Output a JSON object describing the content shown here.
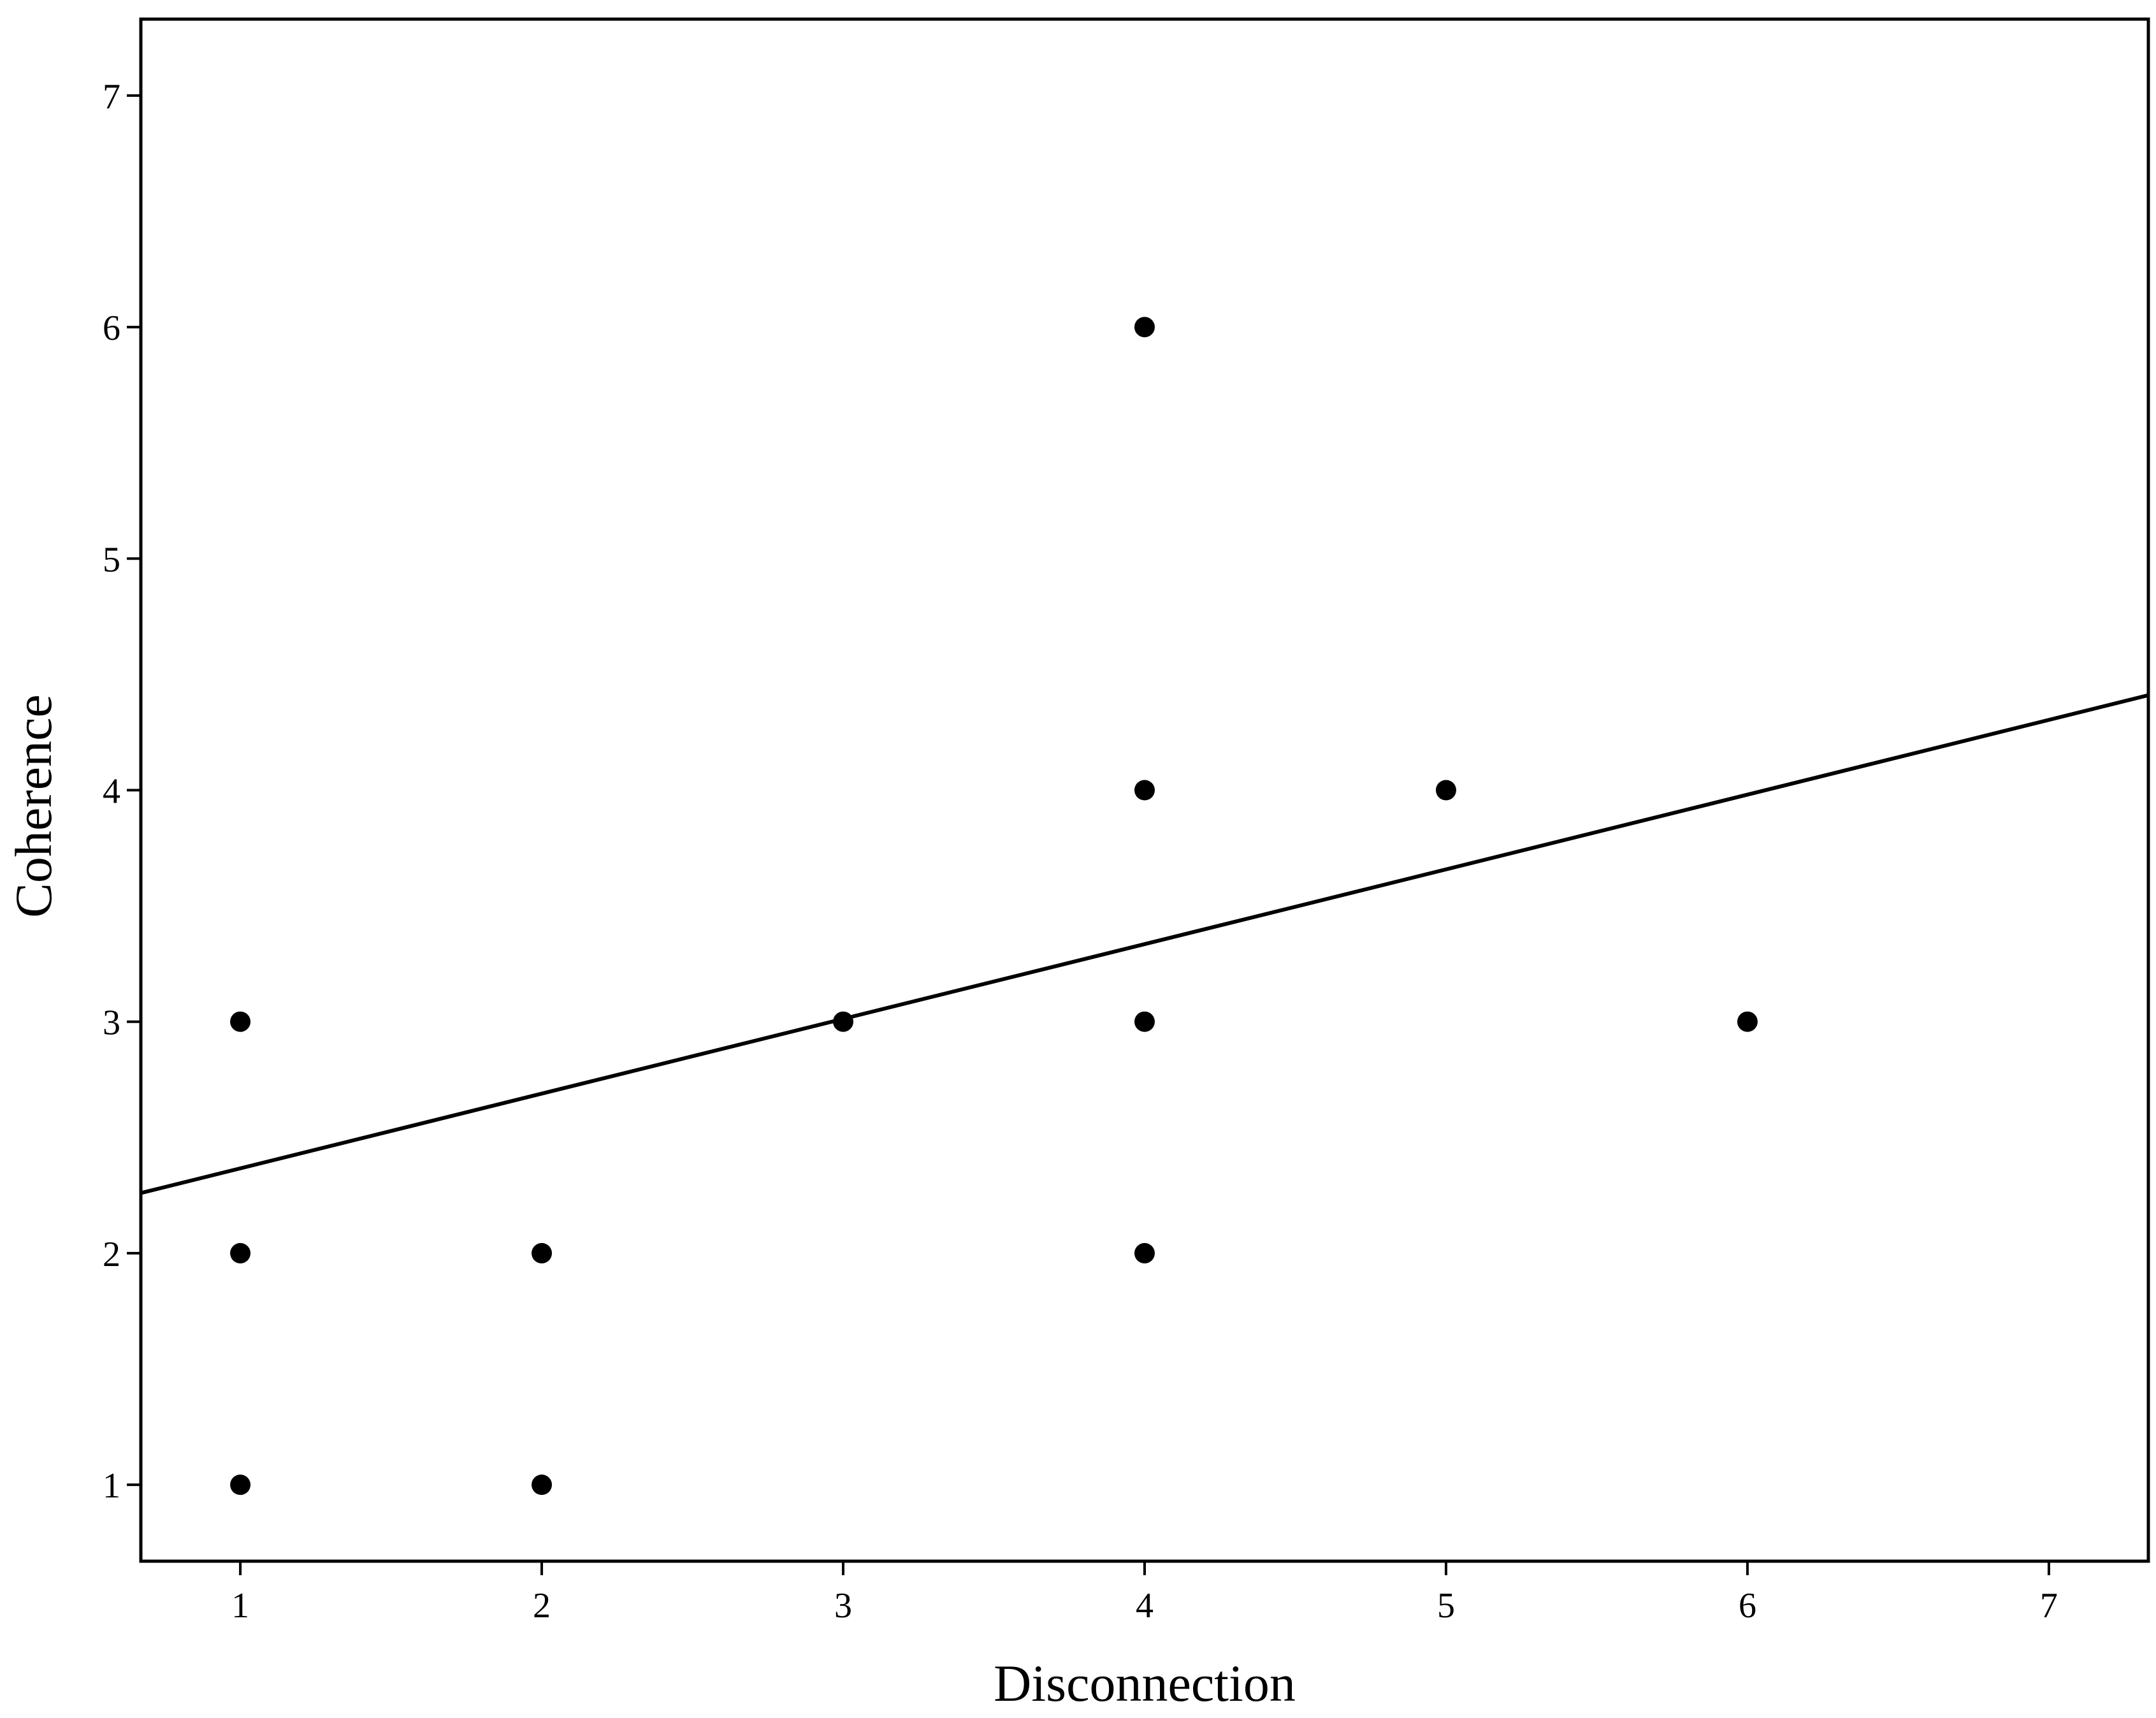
{
  "chart_data": {
    "type": "scatter",
    "title": "",
    "xlabel": "Disconnection",
    "ylabel": "Coherence",
    "xlim": [
      0.67,
      7.33
    ],
    "ylim": [
      0.67,
      7.33
    ],
    "x_ticks": [
      1,
      2,
      3,
      4,
      5,
      6,
      7
    ],
    "y_ticks": [
      1,
      2,
      3,
      4,
      5,
      6,
      7
    ],
    "grid": false,
    "legend": "none",
    "points": [
      {
        "x": 1,
        "y": 1
      },
      {
        "x": 1,
        "y": 2
      },
      {
        "x": 1,
        "y": 3
      },
      {
        "x": 2,
        "y": 1
      },
      {
        "x": 2,
        "y": 2
      },
      {
        "x": 3,
        "y": 3
      },
      {
        "x": 4,
        "y": 2
      },
      {
        "x": 4,
        "y": 3
      },
      {
        "x": 4,
        "y": 4
      },
      {
        "x": 4,
        "y": 6
      },
      {
        "x": 5,
        "y": 4
      },
      {
        "x": 6,
        "y": 3
      }
    ],
    "fit_line": {
      "type": "linear",
      "x": [
        0.67,
        7.33
      ],
      "y": [
        2.26,
        4.41
      ]
    },
    "colors": {
      "marker": "#000000",
      "line": "#000000",
      "frame": "#000000",
      "background": "#ffffff"
    }
  }
}
